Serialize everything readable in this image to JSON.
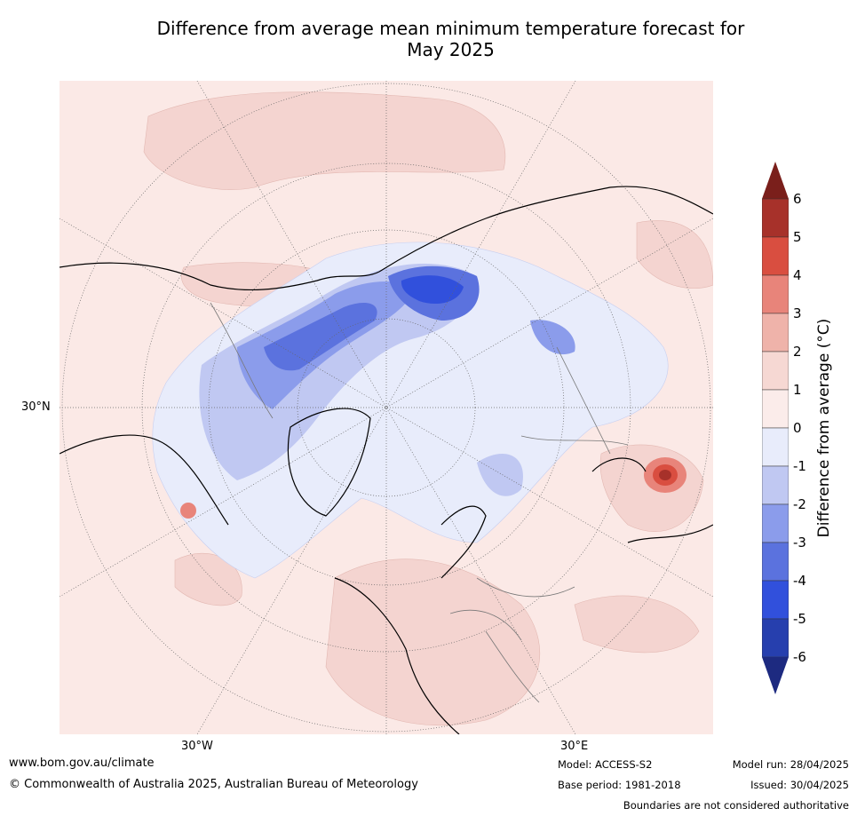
{
  "title_line1": "Difference from average mean minimum temperature forecast for",
  "title_line2": "May 2025",
  "map": {
    "lat_label": "30°N",
    "lon_labels": [
      "30°W",
      "30°E"
    ],
    "projection": "north polar stereographic",
    "colors": {
      "slight_warm": "#fbe9e6",
      "warm_1_2": "#f4d4d0",
      "cool_0_1": "#e8ecfb",
      "cool_1_2": "#bcc6f2",
      "cool_2_3": "#8799ea",
      "cool_3_4": "#5a72de",
      "cool_4_5": "#3356d8",
      "hot": "#c0392b"
    }
  },
  "colorbar": {
    "label": "Difference from average (°C)",
    "ticks": [
      "6",
      "5",
      "4",
      "3",
      "2",
      "1",
      "0",
      "-1",
      "-2",
      "-3",
      "-4",
      "-5",
      "-6"
    ],
    "colors": [
      "#7a1f1b",
      "#a7312a",
      "#d94e40",
      "#e8847a",
      "#efb3aa",
      "#f6d8d3",
      "#fbecea",
      "#e8ecfb",
      "#c0c8f2",
      "#8b9ceb",
      "#5b72de",
      "#3150dc",
      "#263fae",
      "#1d2a80"
    ]
  },
  "footer": {
    "website": "www.bom.gov.au/climate",
    "copyright": "© Commonwealth of Australia 2025, Australian Bureau of Meteorology",
    "model": "Model: ACCESS-S2",
    "base_period": "Base period: 1981-2018",
    "model_run": "Model run: 28/04/2025",
    "issued": "Issued: 30/04/2025",
    "disclaimer": "Boundaries are not considered authoritative"
  }
}
